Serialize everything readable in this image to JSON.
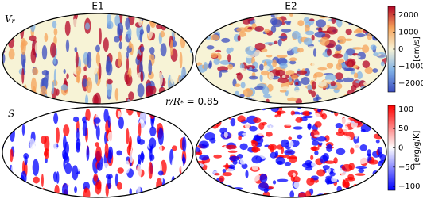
{
  "columns": [
    "E1",
    "E2"
  ],
  "annotation": {
    "math": "r/R",
    "math_sub": "*",
    "text": " = 0.85"
  },
  "rows": [
    {
      "label": "V",
      "label_sub": "r",
      "colorbar": {
        "label": "[cm/s]",
        "lim": [
          -2500,
          2500
        ],
        "ticks": [
          2000,
          1000,
          0,
          {
            "value": -1000,
            "label": "−1000"
          },
          {
            "value": -2000,
            "label": "−2000"
          }
        ],
        "colors": [
          "#3b4cc0",
          "#7fb0e6",
          "#f7f3d6",
          "#f6a35a",
          "#b40426"
        ]
      }
    },
    {
      "label": "S",
      "colorbar": {
        "label": "[erg/g/K]",
        "lim": [
          -110,
          110
        ],
        "ticks": [
          100,
          50,
          0,
          {
            "value": -50,
            "label": "−50"
          },
          {
            "value": -100,
            "label": "−100"
          }
        ],
        "colors": [
          "#0000ff",
          "#ffffff",
          "#ff0000"
        ]
      }
    }
  ]
}
